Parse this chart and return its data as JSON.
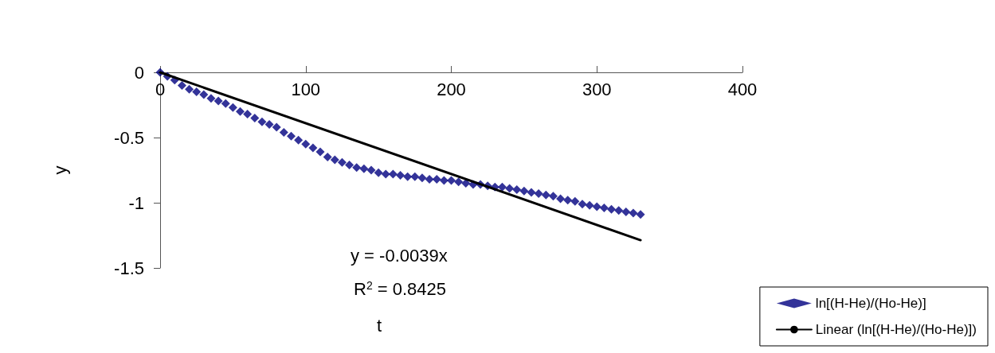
{
  "chart_data": {
    "type": "scatter",
    "xlabel": "t",
    "ylabel": "y",
    "xlim": [
      0,
      400
    ],
    "xticks": [
      0,
      100,
      200,
      300,
      400
    ],
    "ylim": [
      -1.5,
      0
    ],
    "yticks": [
      -1.5,
      -1,
      -0.5,
      0
    ],
    "grid": false,
    "legend": "bottom right",
    "marker": "diamond",
    "annotations": [
      "y = -0.0039x",
      "R$^{2}$ = 0.8425"
    ],
    "series": [
      {
        "name": "ln[(H-He)/(Ho-He)]",
        "color": "#000080",
        "x": [
          0,
          5,
          10,
          15,
          20,
          25,
          30,
          35,
          40,
          45,
          50,
          55,
          60,
          65,
          70,
          75,
          80,
          85,
          90,
          95,
          100,
          105,
          110,
          115,
          120,
          125,
          130,
          135,
          140,
          145,
          150,
          155,
          160,
          165,
          170,
          175,
          180,
          185,
          190,
          195,
          200,
          205,
          210,
          215,
          220,
          225,
          230,
          235,
          240,
          245,
          250,
          255,
          260,
          265,
          270,
          275,
          280,
          285,
          290,
          295,
          300,
          305,
          310,
          315,
          320,
          325,
          330
        ],
        "values": [
          0,
          -0.03,
          -0.06,
          -0.1,
          -0.13,
          -0.15,
          -0.17,
          -0.2,
          -0.22,
          -0.24,
          -0.27,
          -0.3,
          -0.32,
          -0.35,
          -0.38,
          -0.4,
          -0.42,
          -0.46,
          -0.49,
          -0.52,
          -0.55,
          -0.58,
          -0.61,
          -0.65,
          -0.67,
          -0.69,
          -0.71,
          -0.73,
          -0.74,
          -0.75,
          -0.77,
          -0.78,
          -0.78,
          -0.79,
          -0.8,
          -0.8,
          -0.81,
          -0.82,
          -0.82,
          -0.83,
          -0.83,
          -0.84,
          -0.85,
          -0.86,
          -0.86,
          -0.87,
          -0.88,
          -0.88,
          -0.89,
          -0.9,
          -0.91,
          -0.92,
          -0.93,
          -0.94,
          -0.95,
          -0.97,
          -0.98,
          -0.99,
          -1.01,
          -1.02,
          -1.03,
          -1.04,
          -1.05,
          -1.06,
          -1.07,
          -1.08,
          -1.09
        ]
      },
      {
        "name": "Linear (ln[(H-He)/(Ho-He)])",
        "type": "line",
        "color": "#000000",
        "line_style": "solid",
        "marker": "none",
        "x": [
          0,
          330
        ],
        "values": [
          0,
          -1.287
        ]
      }
    ]
  }
}
